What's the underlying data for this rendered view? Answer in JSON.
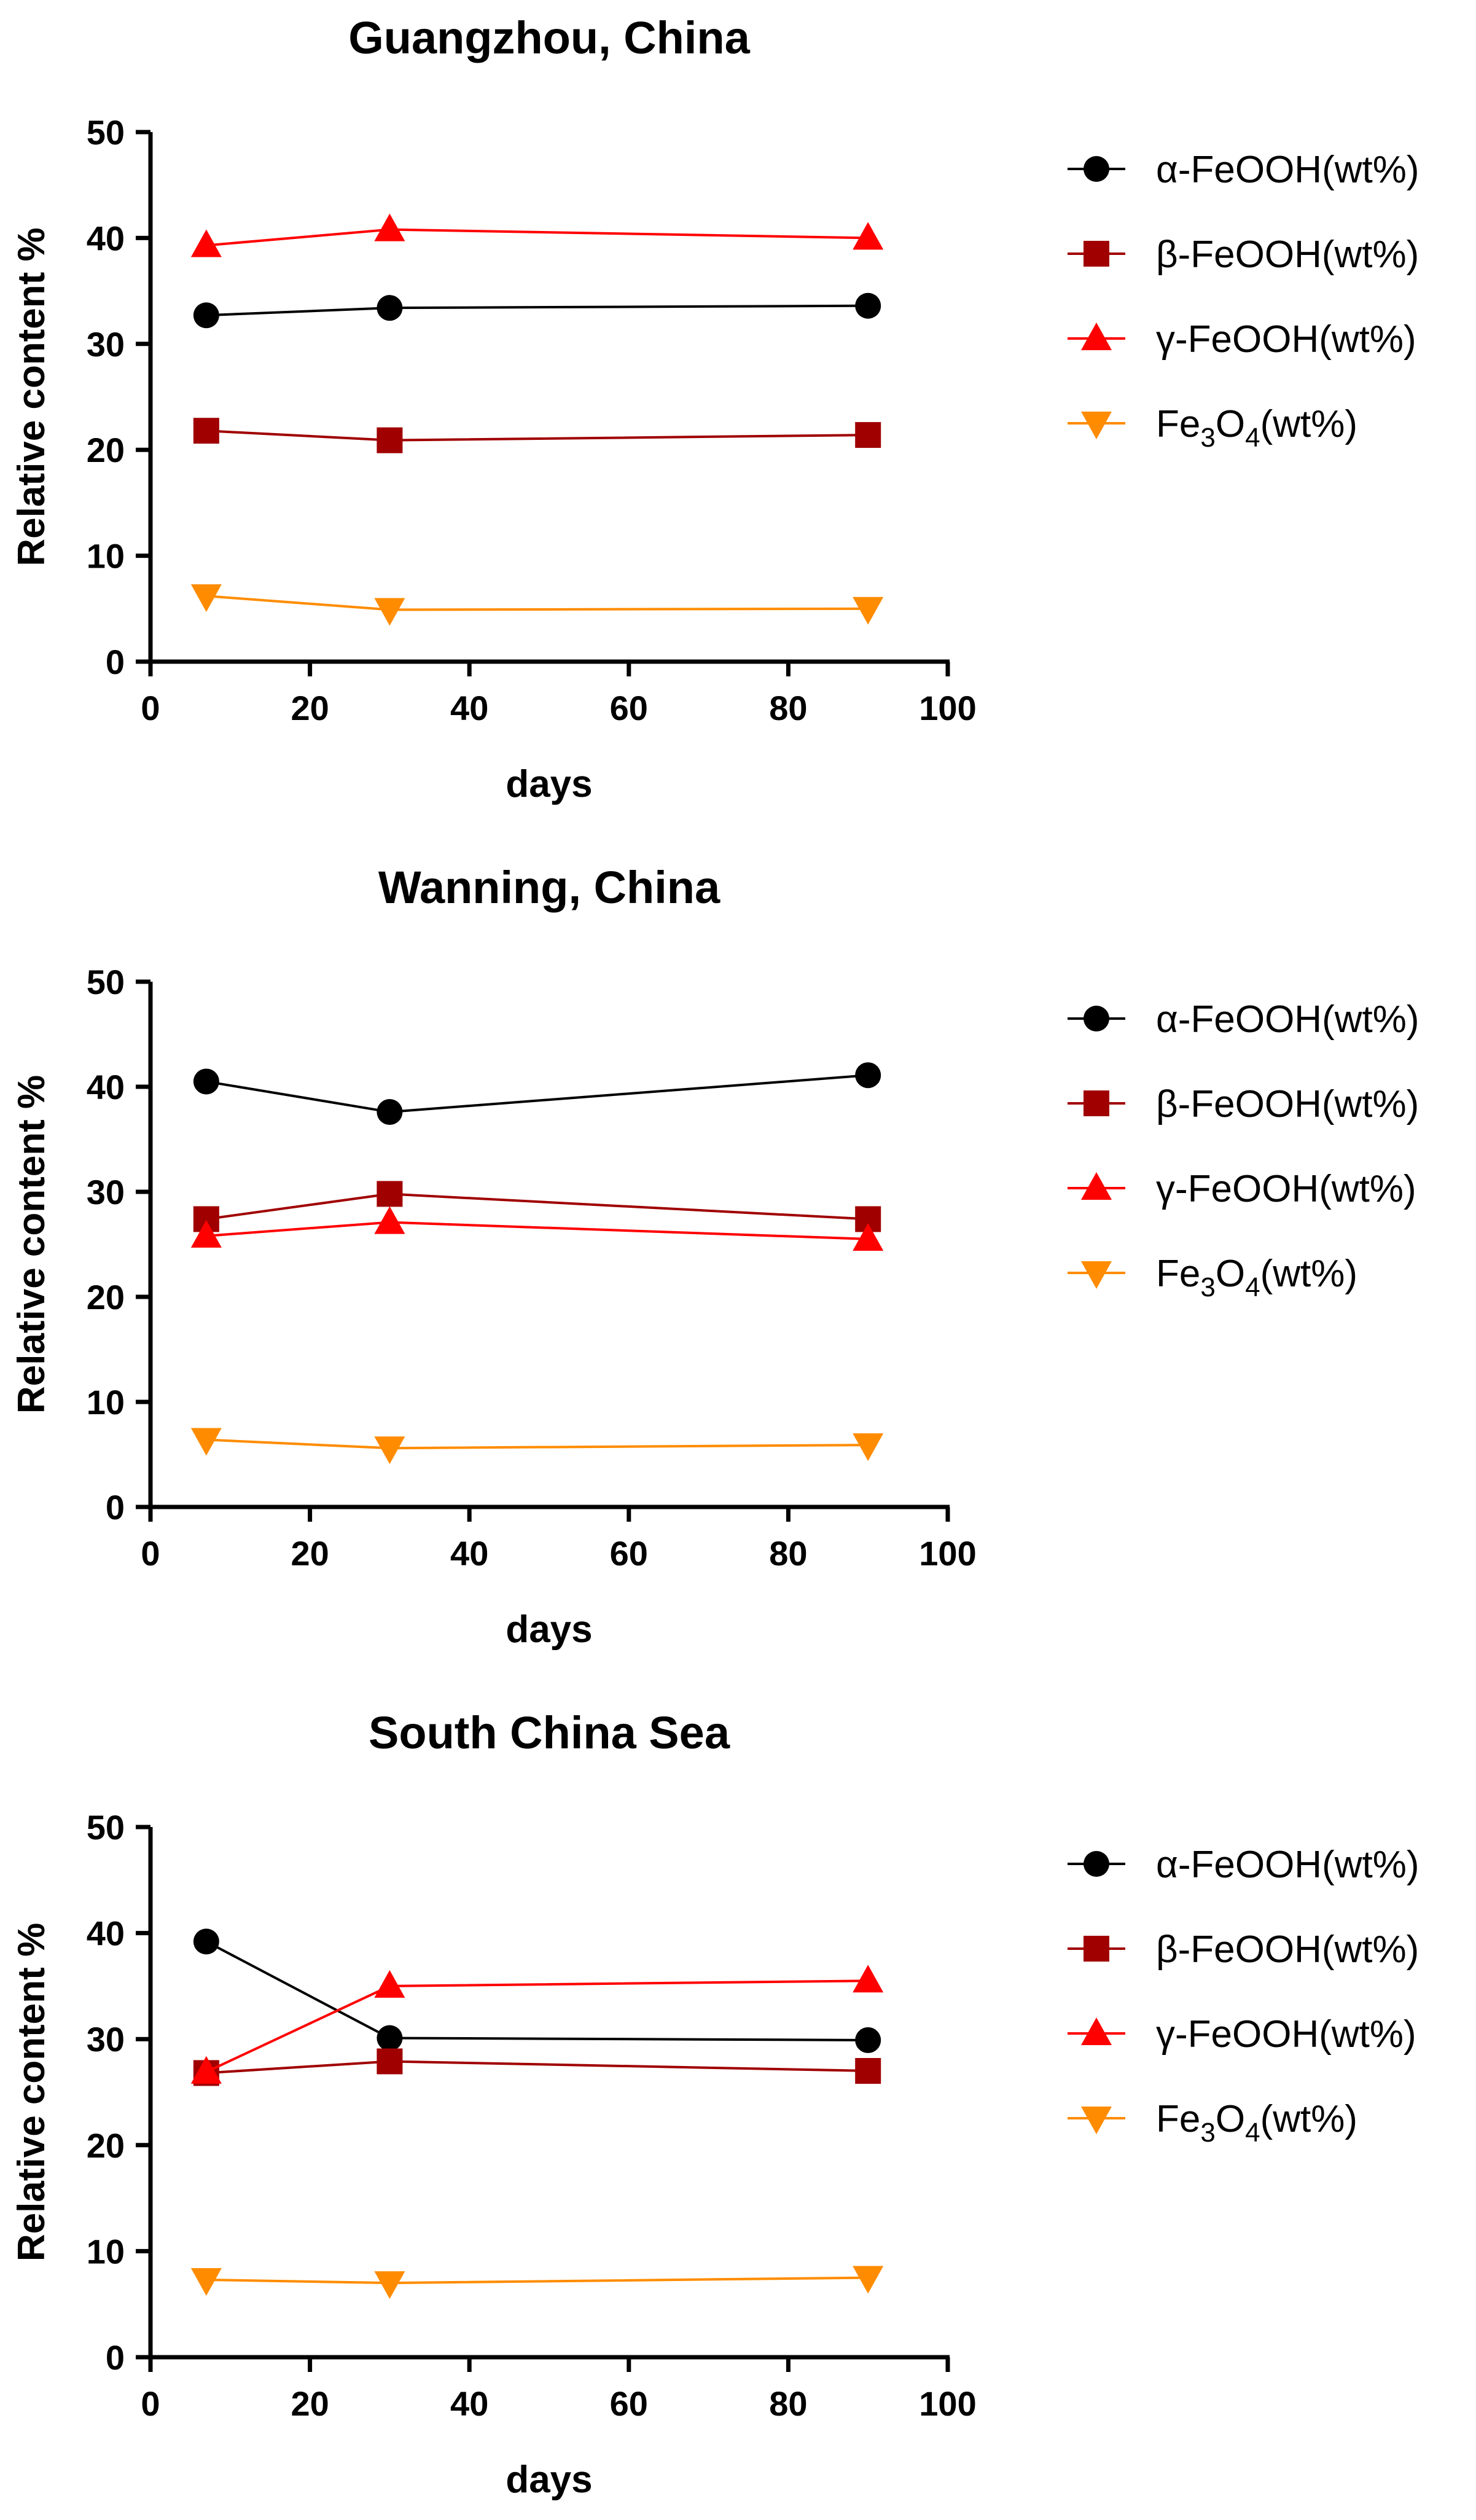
{
  "chart_data": [
    {
      "type": "line",
      "title": "Guangzhou, China",
      "xlabel": "days",
      "ylabel": "Relative content %",
      "xlim": [
        0,
        100
      ],
      "ylim": [
        0,
        50
      ],
      "xticks": [
        0,
        20,
        40,
        60,
        80,
        100
      ],
      "yticks": [
        0,
        10,
        20,
        30,
        40,
        50
      ],
      "x": [
        7,
        30,
        90
      ],
      "series": [
        {
          "name": "α-FeOOH(wt%)",
          "values": [
            32.7,
            33.4,
            33.6
          ],
          "color": "#000000",
          "marker": "circle"
        },
        {
          "name": "β-FeOOH(wt%)",
          "values": [
            21.8,
            20.9,
            21.4
          ],
          "color": "#a00000",
          "marker": "square"
        },
        {
          "name": "γ-FeOOH(wt%)",
          "values": [
            39.3,
            40.8,
            40.0
          ],
          "color": "#ff0000",
          "marker": "triangle-up"
        },
        {
          "name": "Fe3O4(wt%)",
          "legend_main": "Fe",
          "legend_sub1": "3",
          "legend_mid": "O",
          "legend_sub2": "4",
          "legend_tail": "(wt%)",
          "values": [
            6.2,
            4.9,
            5.0
          ],
          "color": "#ff8c00",
          "marker": "triangle-down"
        }
      ],
      "legend": "right"
    },
    {
      "type": "line",
      "title": "Wanning, China",
      "xlabel": "days",
      "ylabel": "Relative content %",
      "xlim": [
        0,
        100
      ],
      "ylim": [
        0,
        50
      ],
      "xticks": [
        0,
        20,
        40,
        60,
        80,
        100
      ],
      "yticks": [
        0,
        10,
        20,
        30,
        40,
        50
      ],
      "x": [
        7,
        30,
        90
      ],
      "series": [
        {
          "name": "α-FeOOH(wt%)",
          "values": [
            40.5,
            37.6,
            41.1
          ],
          "color": "#000000",
          "marker": "circle"
        },
        {
          "name": "β-FeOOH(wt%)",
          "values": [
            27.4,
            29.8,
            27.4
          ],
          "color": "#a00000",
          "marker": "square"
        },
        {
          "name": "γ-FeOOH(wt%)",
          "values": [
            25.8,
            27.1,
            25.5
          ],
          "color": "#ff0000",
          "marker": "triangle-up"
        },
        {
          "name": "Fe3O4(wt%)",
          "legend_main": "Fe",
          "legend_sub1": "3",
          "legend_mid": "O",
          "legend_sub2": "4",
          "legend_tail": "(wt%)",
          "values": [
            6.4,
            5.6,
            5.9
          ],
          "color": "#ff8c00",
          "marker": "triangle-down"
        }
      ],
      "legend": "right"
    },
    {
      "type": "line",
      "title": "South China Sea",
      "xlabel": "days",
      "ylabel": "Relative content %",
      "xlim": [
        0,
        100
      ],
      "ylim": [
        0,
        50
      ],
      "xticks": [
        0,
        20,
        40,
        60,
        80,
        100
      ],
      "yticks": [
        0,
        10,
        20,
        30,
        40,
        50
      ],
      "x": [
        7,
        30,
        90
      ],
      "series": [
        {
          "name": "α-FeOOH(wt%)",
          "values": [
            39.2,
            30.1,
            29.9
          ],
          "color": "#000000",
          "marker": "circle"
        },
        {
          "name": "β-FeOOH(wt%)",
          "values": [
            26.8,
            27.9,
            27.0
          ],
          "color": "#a00000",
          "marker": "square"
        },
        {
          "name": "γ-FeOOH(wt%)",
          "values": [
            26.9,
            35.0,
            35.5
          ],
          "color": "#ff0000",
          "marker": "triangle-up"
        },
        {
          "name": "Fe3O4(wt%)",
          "legend_main": "Fe",
          "legend_sub1": "3",
          "legend_mid": "O",
          "legend_sub2": "4",
          "legend_tail": "(wt%)",
          "values": [
            7.3,
            7.0,
            7.5
          ],
          "color": "#ff8c00",
          "marker": "triangle-down"
        }
      ],
      "legend": "right"
    }
  ]
}
